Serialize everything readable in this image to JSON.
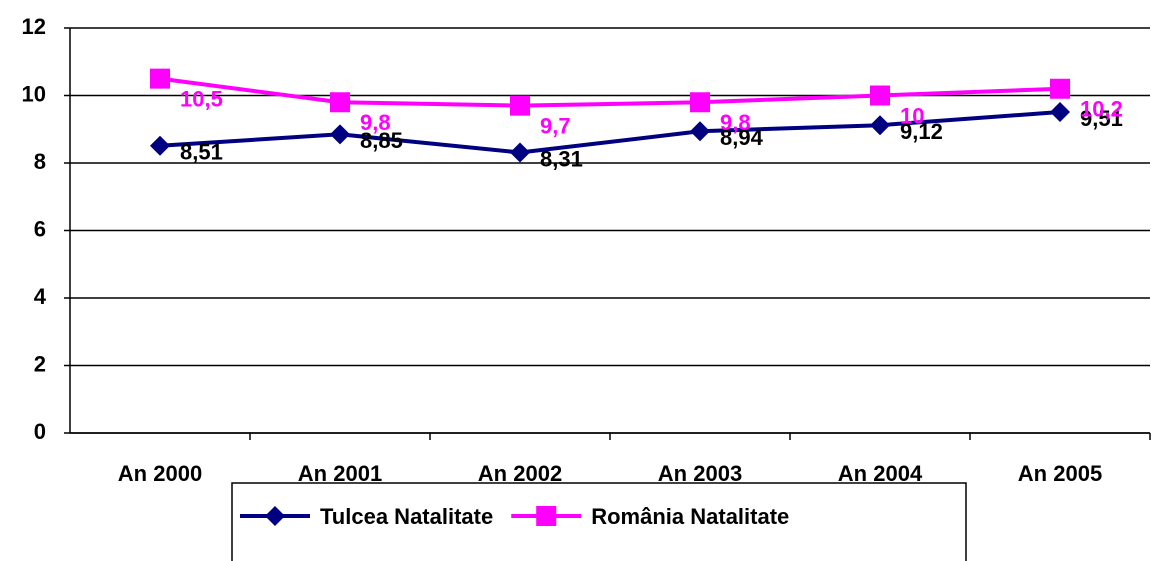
{
  "chart_data": {
    "type": "line",
    "categories": [
      "An 2000",
      "An 2001",
      "An 2002",
      "An 2003",
      "An 2004",
      "An 2005"
    ],
    "series": [
      {
        "name": "Tulcea Natalitate",
        "color": "#000080",
        "marker": "diamond",
        "values": [
          8.51,
          8.85,
          8.31,
          8.94,
          9.12,
          9.51
        ],
        "value_labels": [
          "8,51",
          "8,85",
          "8,31",
          "8,94",
          "9,12",
          "9,51"
        ],
        "label_color": "#000000"
      },
      {
        "name": "România Natalitate",
        "color": "#ff00ff",
        "marker": "square",
        "values": [
          10.5,
          9.8,
          9.7,
          9.8,
          10,
          10.2
        ],
        "value_labels": [
          "10,5",
          "9,8",
          "9,7",
          "9,8",
          "10",
          "10,2"
        ],
        "label_color": "#ff00ff"
      }
    ],
    "ylim": [
      0,
      12
    ],
    "yticks": [
      0,
      2,
      4,
      6,
      8,
      10,
      12
    ],
    "grid": true,
    "legend": "bottom"
  }
}
